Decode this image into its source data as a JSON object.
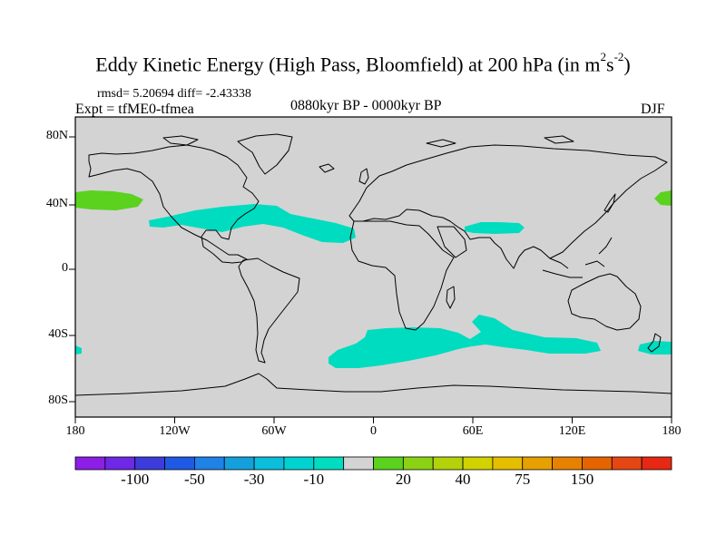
{
  "title": {
    "main": "Eddy Kinetic Energy (High Pass, Bloomfield) at 200 hPa (in m",
    "exp1": "2",
    "mid": "s",
    "exp2": "-2",
    "close": ")"
  },
  "stats": "rmsd= 5.20694 diff= -2.43338",
  "experiment": "Expt = tfME0-tfmea",
  "period": "0880kyr BP - 0000kyr BP",
  "season": "DJF",
  "lat_labels": [
    "80N",
    "40N",
    "0",
    "40S",
    "80S"
  ],
  "lon_labels": [
    "180",
    "120W",
    "60W",
    "0",
    "60E",
    "120E",
    "180"
  ],
  "colors": {
    "ocean_land_bg": "#d3d3d3",
    "neg_light": "#00dcc0",
    "pos_light": "#5ad21e",
    "coast": "#000000"
  },
  "colorbar": {
    "colors": [
      "#8c1ee6",
      "#6e28e6",
      "#3c3cdc",
      "#1e5ae6",
      "#1e82e6",
      "#14a0dc",
      "#0abedc",
      "#00d2d2",
      "#00dcc0",
      "#d3d3d3",
      "#5ad21e",
      "#8cd214",
      "#b4d20a",
      "#d2d200",
      "#e6be00",
      "#e6a000",
      "#e68200",
      "#e66400",
      "#e64614",
      "#e62814"
    ],
    "labels": [
      "-100",
      "-50",
      "-30",
      "-10",
      "20",
      "40",
      "75",
      "150"
    ]
  }
}
